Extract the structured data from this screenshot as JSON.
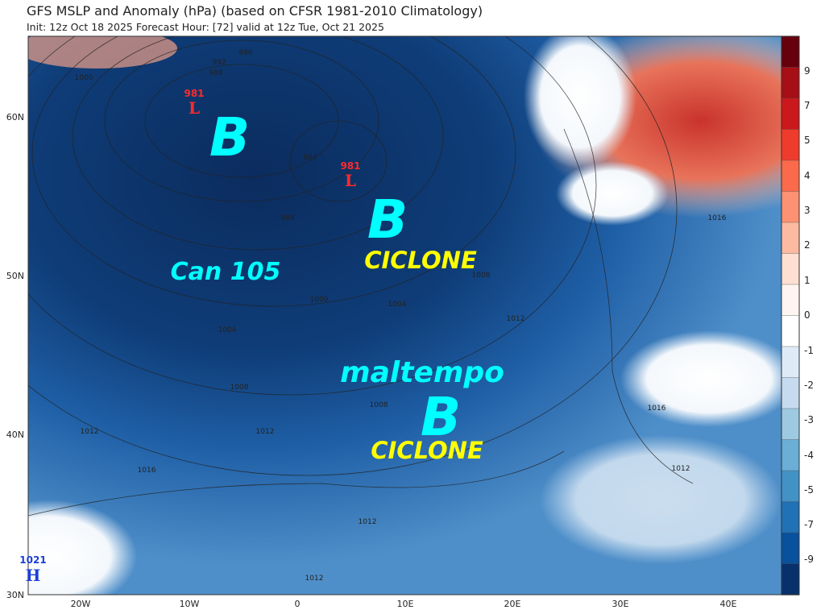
{
  "header": {
    "title": "GFS MSLP and Anomaly (hPa) (based on CFSR 1981-2010 Climatology)",
    "subtitle": "Init: 12z Oct 18 2025   Forecast Hour: [72]   valid at 12z Tue, Oct 21 2025"
  },
  "map": {
    "lat_labels": [
      "60N",
      "50N",
      "40N",
      "30N"
    ],
    "lon_labels": [
      "20W",
      "10W",
      "0",
      "10E",
      "20E",
      "30E",
      "40E"
    ],
    "pressure_centers": [
      {
        "type": "L",
        "value": "981"
      },
      {
        "type": "L",
        "value": "981"
      },
      {
        "type": "H",
        "value": "1021"
      }
    ],
    "isobar_labels": [
      "1000",
      "996",
      "992",
      "988",
      "984",
      "988",
      "1000",
      "1004",
      "1004",
      "1008",
      "1008",
      "1008",
      "1012",
      "1012",
      "1012",
      "1012",
      "1012",
      "1016",
      "1016",
      "1016",
      "1012"
    ],
    "annotations": {
      "b1": "B",
      "b2": "B",
      "b3": "B",
      "ciclone1": "CICLONE",
      "ciclone2": "CICLONE",
      "can": "Can 105",
      "maltempo": "maltempo"
    },
    "annotation_colors": {
      "b": "#00ffff",
      "ciclone": "#ffff00",
      "low": "#ff2a2a",
      "high": "#1a3fd6"
    }
  },
  "colorbar": {
    "ticks": [
      "9",
      "7",
      "5",
      "4",
      "3",
      "2",
      "1",
      "0",
      "-1",
      "-2",
      "-3",
      "-4",
      "-5",
      "-7",
      "-9"
    ],
    "colors_top_to_bottom": [
      "#67000d",
      "#a50f15",
      "#cb181d",
      "#ef3b2c",
      "#fb6a4a",
      "#fc9272",
      "#fcbba1",
      "#fee0d2",
      "#fff5f0",
      "#ffffff",
      "#deebf7",
      "#c6dbef",
      "#9ecae1",
      "#6baed6",
      "#4292c6",
      "#2171b5",
      "#08519c",
      "#08306b"
    ]
  }
}
